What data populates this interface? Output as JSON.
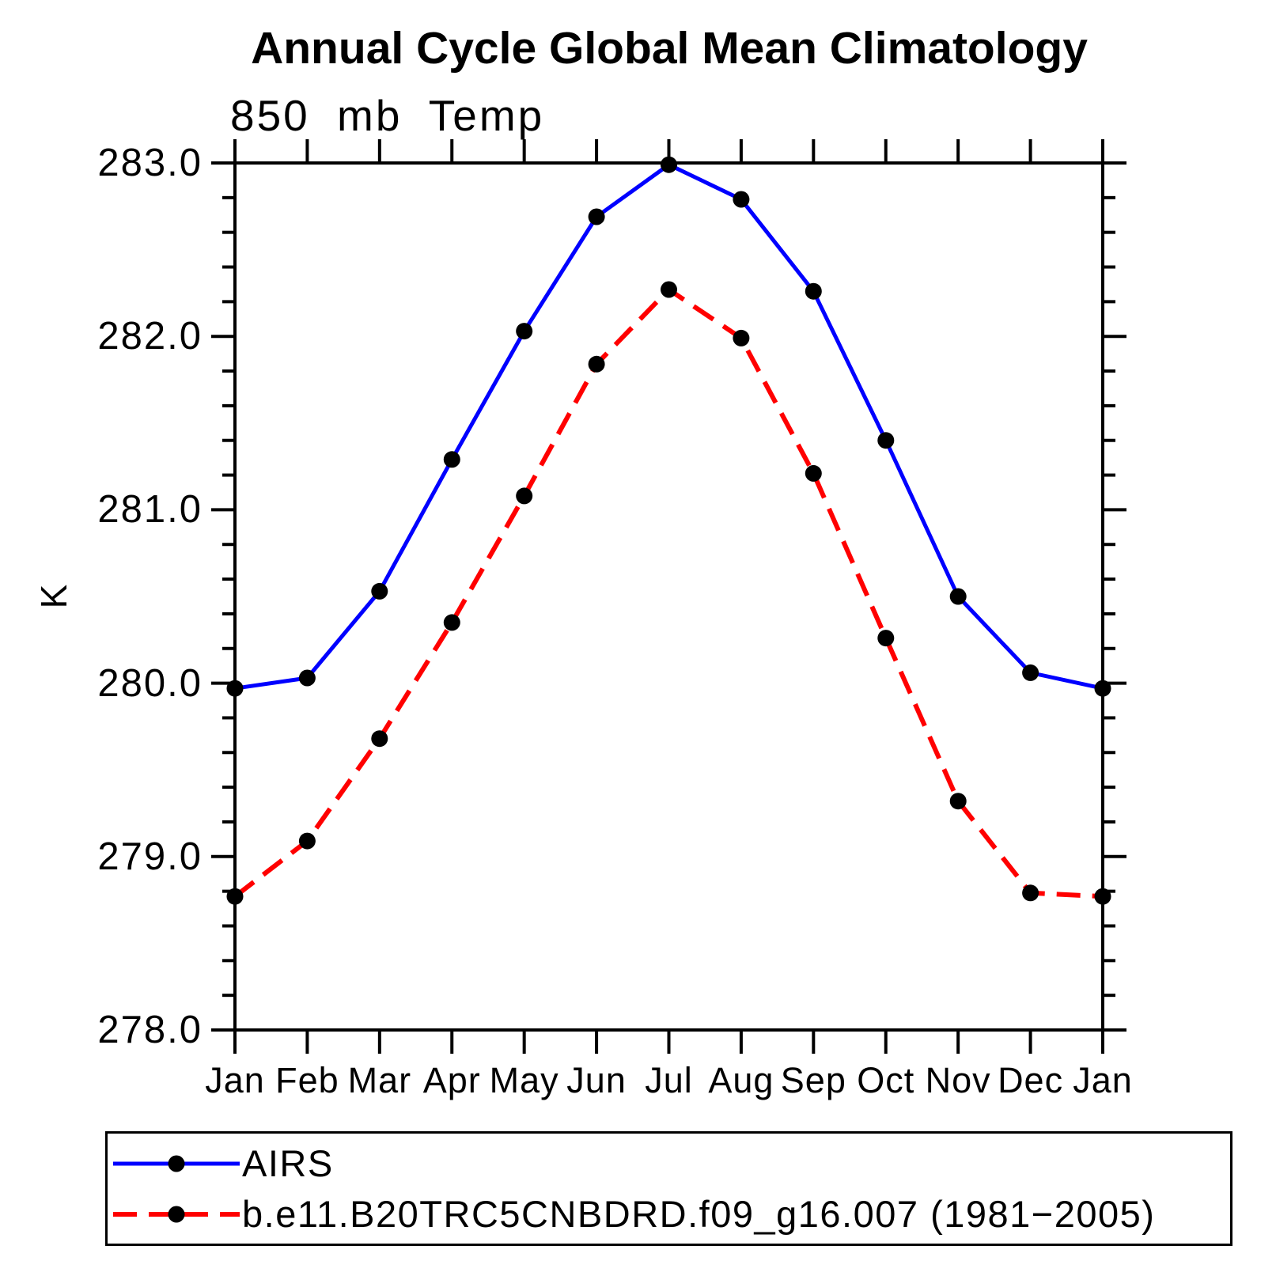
{
  "title": "Annual Cycle Global Mean Climatology",
  "subtitle": "850 mb Temp",
  "ylabel": "K",
  "chart_data": {
    "type": "line",
    "categories": [
      "Jan",
      "Feb",
      "Mar",
      "Apr",
      "May",
      "Jun",
      "Jul",
      "Aug",
      "Sep",
      "Oct",
      "Nov",
      "Dec",
      "Jan"
    ],
    "series": [
      {
        "name": "AIRS",
        "color": "#0000ff",
        "line_style": "solid",
        "marker": "filled-circle",
        "marker_color": "#000000",
        "values": [
          279.97,
          280.03,
          280.53,
          281.29,
          282.03,
          282.69,
          282.99,
          282.79,
          282.26,
          281.4,
          280.5,
          280.06,
          279.97
        ]
      },
      {
        "name": "b.e11.B20TRC5CNBDRD.f09_g16.007 (1981−2005)",
        "color": "#ff0000",
        "line_style": "dashed",
        "marker": "filled-circle",
        "marker_color": "#000000",
        "values": [
          278.77,
          279.09,
          279.68,
          280.35,
          281.08,
          281.84,
          282.27,
          281.99,
          281.21,
          280.26,
          279.32,
          278.79,
          278.77
        ]
      }
    ],
    "xlabel": "",
    "ylabel": "K",
    "ylim": [
      278.0,
      283.0
    ],
    "ytick_labels": [
      "278.0",
      "279.0",
      "280.0",
      "281.0",
      "282.0",
      "283.0"
    ],
    "ytick_major_step": 1.0,
    "ytick_minor_step": 0.2,
    "grid": false,
    "legend_position": "bottom",
    "axis_color": "#000000"
  }
}
